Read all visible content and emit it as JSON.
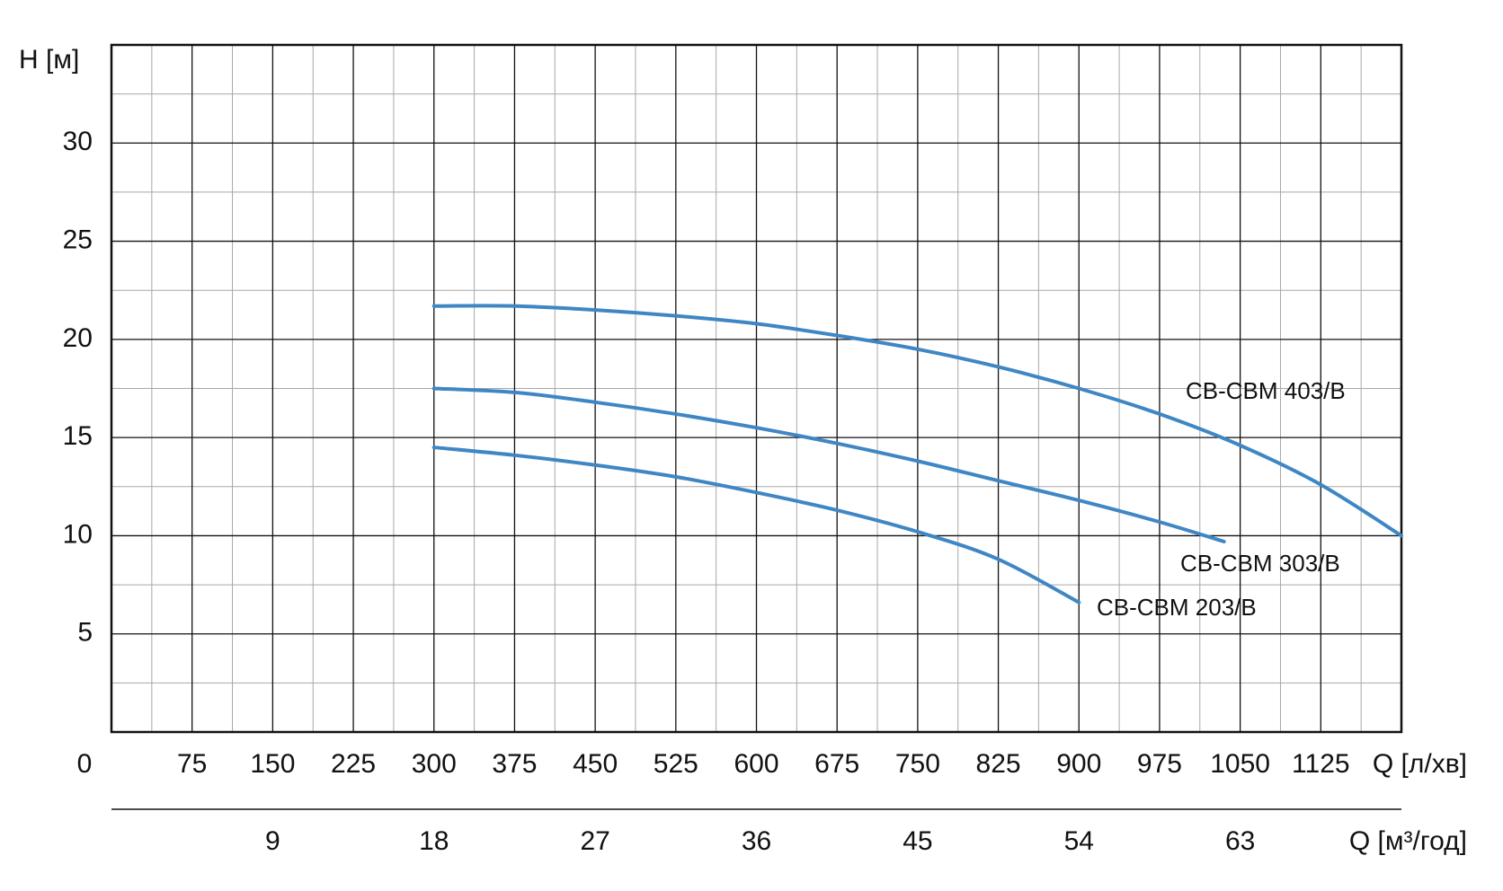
{
  "chart_data": {
    "type": "line",
    "y_label": "H [м]",
    "x_label": "Q [л/хв]",
    "x2_label": "Q [м³/год]",
    "xlim": [
      0,
      1200
    ],
    "xticks": [
      0,
      75,
      150,
      225,
      300,
      375,
      450,
      525,
      600,
      675,
      750,
      825,
      900,
      975,
      1050,
      1125
    ],
    "x2lim": [
      0,
      72
    ],
    "x2ticks": [
      9,
      18,
      27,
      36,
      45,
      54,
      63
    ],
    "ylim": [
      0,
      35
    ],
    "yticks": [
      5,
      10,
      15,
      20,
      25,
      30
    ],
    "grid": true,
    "series": [
      {
        "name": "CB-CBM 403/B",
        "color": "#3f87c4",
        "x": [
          300,
          375,
          450,
          525,
          600,
          675,
          750,
          825,
          900,
          975,
          1050,
          1125,
          1200
        ],
        "values": [
          21.7,
          21.7,
          21.5,
          21.2,
          20.8,
          20.2,
          19.5,
          18.6,
          17.5,
          16.2,
          14.6,
          12.6,
          10.0
        ]
      },
      {
        "name": "CB-CBM 303/B",
        "color": "#3f87c4",
        "x": [
          300,
          375,
          450,
          525,
          600,
          675,
          750,
          825,
          900,
          975,
          1035
        ],
        "values": [
          17.5,
          17.3,
          16.8,
          16.2,
          15.5,
          14.7,
          13.8,
          12.8,
          11.8,
          10.7,
          9.7
        ]
      },
      {
        "name": "CB-CBM 203/B",
        "color": "#3f87c4",
        "x": [
          300,
          375,
          450,
          525,
          600,
          675,
          750,
          825,
          900
        ],
        "values": [
          14.5,
          14.1,
          13.6,
          13.0,
          12.2,
          11.3,
          10.2,
          8.8,
          6.6
        ]
      }
    ]
  }
}
